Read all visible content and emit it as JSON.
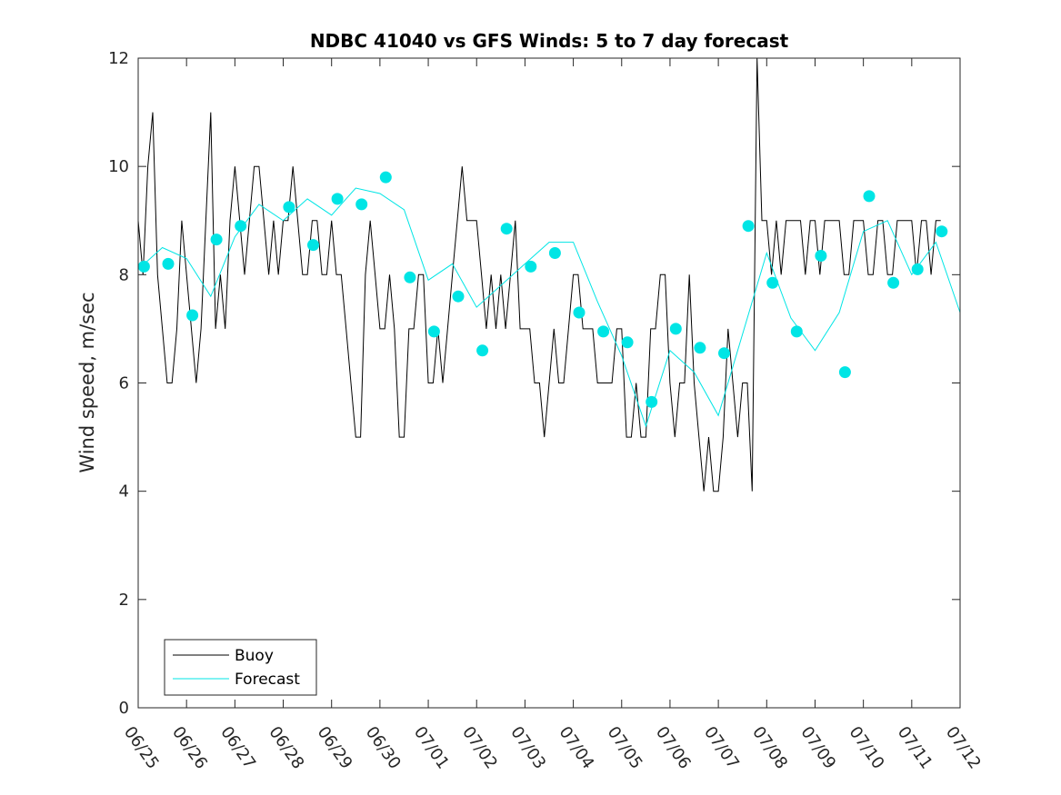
{
  "chart_data": {
    "type": "line",
    "title": "NDBC 41040 vs GFS Winds: 5 to 7 day forecast",
    "xlabel": "",
    "ylabel": "Wind speed, m/sec",
    "x_tick_labels": [
      "06/25",
      "06/26",
      "06/27",
      "06/28",
      "06/29",
      "06/30",
      "07/01",
      "07/02",
      "07/03",
      "07/04",
      "07/05",
      "07/06",
      "07/07",
      "07/08",
      "07/09",
      "07/10",
      "07/11",
      "07/12"
    ],
    "y_tick_labels": [
      "0",
      "2",
      "4",
      "6",
      "8",
      "10",
      "12"
    ],
    "xlim_days": [
      0,
      17
    ],
    "ylim": [
      0,
      12
    ],
    "grid": false,
    "legend_position": "bottom-left",
    "colors": {
      "buoy": "#000000",
      "forecast": "#00e5e5"
    },
    "legend": [
      {
        "label": "Buoy",
        "color": "#000000"
      },
      {
        "label": "Forecast",
        "color": "#00e5e5"
      }
    ],
    "series": [
      {
        "name": "Buoy",
        "color": "#000000",
        "x": [
          0.0,
          0.1,
          0.2,
          0.3,
          0.4,
          0.5,
          0.6,
          0.7,
          0.8,
          0.9,
          1.0,
          1.1,
          1.2,
          1.3,
          1.4,
          1.5,
          1.6,
          1.7,
          1.8,
          1.9,
          2.0,
          2.1,
          2.2,
          2.3,
          2.4,
          2.5,
          2.6,
          2.7,
          2.8,
          2.9,
          3.0,
          3.1,
          3.2,
          3.3,
          3.4,
          3.5,
          3.6,
          3.7,
          3.8,
          3.9,
          4.0,
          4.1,
          4.2,
          4.3,
          4.4,
          4.5,
          4.6,
          4.7,
          4.8,
          4.9,
          5.0,
          5.1,
          5.2,
          5.3,
          5.4,
          5.5,
          5.6,
          5.7,
          5.8,
          5.9,
          6.0,
          6.1,
          6.2,
          6.3,
          6.4,
          6.5,
          6.6,
          6.7,
          6.8,
          6.9,
          7.0,
          7.1,
          7.2,
          7.3,
          7.4,
          7.5,
          7.6,
          7.7,
          7.8,
          7.9,
          8.0,
          8.1,
          8.2,
          8.3,
          8.4,
          8.5,
          8.6,
          8.7,
          8.8,
          8.9,
          9.0,
          9.1,
          9.2,
          9.3,
          9.4,
          9.5,
          9.6,
          9.7,
          9.8,
          9.9,
          10.0,
          10.1,
          10.2,
          10.3,
          10.4,
          10.5,
          10.6,
          10.7,
          10.8,
          10.9,
          11.0,
          11.1,
          11.2,
          11.3,
          11.4,
          11.5,
          11.6,
          11.7,
          11.8,
          11.9,
          12.0,
          12.1,
          12.2,
          12.3,
          12.4,
          12.5,
          12.6,
          12.7,
          12.8,
          12.9,
          13.0,
          13.1,
          13.2,
          13.3,
          13.4,
          13.5,
          13.6,
          13.7,
          13.8,
          13.9,
          14.0,
          14.1,
          14.2,
          14.3,
          14.4,
          14.5,
          14.6,
          14.7,
          14.8,
          14.9,
          15.0,
          15.1,
          15.2,
          15.3,
          15.4,
          15.5,
          15.6,
          15.7,
          15.8,
          15.9,
          16.0,
          16.1,
          16.2,
          16.3,
          16.4,
          16.5,
          16.6
        ],
        "y": [
          9,
          8,
          10,
          11,
          8,
          7,
          6,
          6,
          7,
          9,
          8,
          7,
          6,
          7,
          9,
          11,
          7,
          8,
          7,
          9,
          10,
          9,
          8,
          9,
          10,
          10,
          9,
          8,
          9,
          8,
          9,
          9,
          10,
          9,
          8,
          8,
          9,
          9,
          8,
          8,
          9,
          8,
          8,
          7,
          6,
          5,
          5,
          8,
          9,
          8,
          7,
          7,
          8,
          7,
          5,
          5,
          7,
          7,
          8,
          8,
          6,
          6,
          7,
          6,
          7,
          8,
          9,
          10,
          9,
          9,
          9,
          8,
          7,
          8,
          7,
          8,
          7,
          8,
          9,
          7,
          7,
          7,
          6,
          6,
          5,
          6,
          7,
          6,
          6,
          7,
          8,
          8,
          7,
          7,
          7,
          6,
          6,
          6,
          6,
          7,
          7,
          5,
          5,
          6,
          5,
          5,
          7,
          7,
          8,
          8,
          6,
          5,
          6,
          6,
          8,
          6,
          5,
          4,
          5,
          4,
          4,
          5,
          7,
          6,
          5,
          6,
          6,
          4,
          12,
          9,
          9,
          8,
          9,
          8,
          9,
          9,
          9,
          9,
          8,
          9,
          9,
          8,
          9,
          9,
          9,
          9,
          8,
          8,
          9,
          9,
          9,
          8,
          8,
          9,
          9,
          8,
          8,
          9,
          9,
          9,
          9,
          8,
          9,
          9,
          8,
          9,
          9
        ]
      },
      {
        "name": "Forecast",
        "color": "#00e5e5",
        "x": [
          0.0,
          0.5,
          1.0,
          1.5,
          2.0,
          2.5,
          3.0,
          3.5,
          4.0,
          4.5,
          5.0,
          5.5,
          6.0,
          6.5,
          7.0,
          7.5,
          8.0,
          8.5,
          9.0,
          9.5,
          10.0,
          10.5,
          11.0,
          11.5,
          12.0,
          12.5,
          13.0,
          13.5,
          14.0,
          14.5,
          15.0,
          15.5,
          16.0,
          16.5,
          17.0
        ],
        "y": [
          8.1,
          8.5,
          8.3,
          7.6,
          8.7,
          9.3,
          9.0,
          9.4,
          9.1,
          9.6,
          9.5,
          9.2,
          7.9,
          8.2,
          7.4,
          7.8,
          8.2,
          8.6,
          8.6,
          7.5,
          6.5,
          5.2,
          6.6,
          6.2,
          5.4,
          6.9,
          8.4,
          7.2,
          6.6,
          7.3,
          8.8,
          9.0,
          8.0,
          8.6,
          7.3
        ]
      }
    ],
    "forecast_points": {
      "x": [
        0.12,
        0.62,
        1.12,
        1.62,
        2.12,
        3.12,
        3.62,
        4.12,
        4.62,
        5.12,
        5.62,
        6.12,
        6.62,
        7.12,
        7.62,
        8.12,
        8.62,
        9.12,
        9.62,
        10.12,
        10.62,
        11.12,
        11.62,
        12.12,
        12.62,
        13.12,
        13.62,
        14.12,
        14.62,
        15.12,
        15.62,
        16.12,
        16.62
      ],
      "y": [
        8.15,
        8.2,
        7.25,
        8.65,
        8.9,
        9.25,
        8.55,
        9.4,
        9.3,
        9.8,
        7.95,
        6.95,
        7.6,
        6.6,
        8.85,
        8.15,
        8.4,
        7.3,
        6.95,
        6.75,
        5.65,
        7.0,
        6.65,
        6.55,
        8.9,
        7.85,
        6.95,
        8.35,
        6.2,
        9.45,
        7.85,
        8.1,
        8.8
      ]
    }
  }
}
